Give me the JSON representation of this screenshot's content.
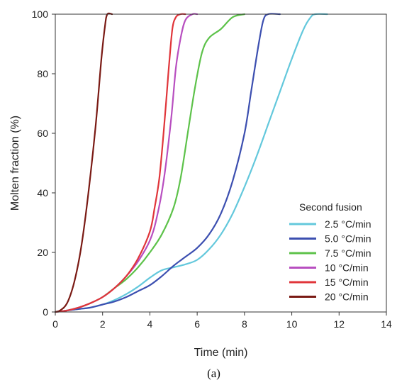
{
  "chart_data": {
    "type": "line",
    "xlabel": "Time (min)",
    "ylabel": "Molten fraction (%)",
    "xlim": [
      0,
      14
    ],
    "ylim": [
      0,
      100
    ],
    "x_ticks": [
      0,
      2,
      4,
      6,
      8,
      10,
      12,
      14
    ],
    "y_ticks": [
      0,
      20,
      40,
      60,
      80,
      100
    ],
    "grid": false,
    "legend_title": "Second fusion",
    "legend_position": "bottom-right",
    "caption": "(a)",
    "series": [
      {
        "name": "2.5 °C/min",
        "color": "#63c8dc",
        "points": [
          [
            0,
            0
          ],
          [
            0.5,
            0.5
          ],
          [
            1,
            1
          ],
          [
            1.5,
            1.5
          ],
          [
            2,
            2.5
          ],
          [
            2.5,
            4
          ],
          [
            3,
            6
          ],
          [
            3.5,
            8.5
          ],
          [
            4,
            11.5
          ],
          [
            4.5,
            14
          ],
          [
            5,
            15
          ],
          [
            5.5,
            16
          ],
          [
            6,
            17.5
          ],
          [
            6.5,
            21
          ],
          [
            7,
            26
          ],
          [
            7.5,
            33
          ],
          [
            8,
            42
          ],
          [
            8.5,
            52
          ],
          [
            9,
            63
          ],
          [
            9.5,
            74
          ],
          [
            10,
            85
          ],
          [
            10.5,
            95
          ],
          [
            10.8,
            99
          ],
          [
            11,
            100
          ],
          [
            11.5,
            100
          ]
        ]
      },
      {
        "name": "5.0 °C/min",
        "color": "#3c4fb0",
        "points": [
          [
            0,
            0
          ],
          [
            0.5,
            0.5
          ],
          [
            1,
            1
          ],
          [
            1.5,
            1.5
          ],
          [
            2,
            2.5
          ],
          [
            2.5,
            3.5
          ],
          [
            3,
            5
          ],
          [
            3.5,
            7
          ],
          [
            4,
            9
          ],
          [
            4.5,
            12
          ],
          [
            5,
            15.5
          ],
          [
            5.5,
            18.5
          ],
          [
            6,
            21.5
          ],
          [
            6.5,
            26
          ],
          [
            7,
            33
          ],
          [
            7.5,
            44
          ],
          [
            8,
            60
          ],
          [
            8.3,
            75
          ],
          [
            8.6,
            90
          ],
          [
            8.8,
            98
          ],
          [
            9,
            100
          ],
          [
            9.5,
            100
          ]
        ]
      },
      {
        "name": "7.5 °C/min",
        "color": "#5dc24a",
        "points": [
          [
            0,
            0
          ],
          [
            0.5,
            0.5
          ],
          [
            1,
            1.5
          ],
          [
            1.5,
            3
          ],
          [
            2,
            5
          ],
          [
            2.5,
            8
          ],
          [
            3,
            11
          ],
          [
            3.5,
            15
          ],
          [
            4,
            20
          ],
          [
            4.5,
            26
          ],
          [
            5,
            35
          ],
          [
            5.3,
            45
          ],
          [
            5.6,
            60
          ],
          [
            5.9,
            75
          ],
          [
            6.2,
            87
          ],
          [
            6.5,
            92
          ],
          [
            7,
            95
          ],
          [
            7.5,
            99
          ],
          [
            8,
            100
          ]
        ]
      },
      {
        "name": "10 °C/min",
        "color": "#b84fc0",
        "points": [
          [
            0,
            0
          ],
          [
            0.5,
            0.5
          ],
          [
            1,
            1.5
          ],
          [
            1.5,
            3
          ],
          [
            2,
            5
          ],
          [
            2.5,
            8
          ],
          [
            3,
            12
          ],
          [
            3.5,
            17
          ],
          [
            4,
            24
          ],
          [
            4.3,
            32
          ],
          [
            4.6,
            45
          ],
          [
            4.9,
            65
          ],
          [
            5.1,
            82
          ],
          [
            5.3,
            92
          ],
          [
            5.5,
            98
          ],
          [
            5.8,
            100
          ],
          [
            6,
            100
          ]
        ]
      },
      {
        "name": "15 °C/min",
        "color": "#e0353a",
        "points": [
          [
            0,
            0
          ],
          [
            0.5,
            0.5
          ],
          [
            1,
            1.5
          ],
          [
            1.5,
            3
          ],
          [
            2,
            5
          ],
          [
            2.5,
            8
          ],
          [
            3,
            12
          ],
          [
            3.5,
            18
          ],
          [
            4,
            27
          ],
          [
            4.2,
            35
          ],
          [
            4.4,
            45
          ],
          [
            4.6,
            62
          ],
          [
            4.8,
            82
          ],
          [
            4.95,
            95
          ],
          [
            5.1,
            99
          ],
          [
            5.3,
            100
          ],
          [
            5.5,
            100
          ]
        ]
      },
      {
        "name": "20 °C/min",
        "color": "#7a1a14",
        "points": [
          [
            0,
            0
          ],
          [
            0.2,
            0.5
          ],
          [
            0.5,
            3
          ],
          [
            0.8,
            10
          ],
          [
            1.1,
            22
          ],
          [
            1.4,
            40
          ],
          [
            1.7,
            62
          ],
          [
            1.95,
            85
          ],
          [
            2.1,
            96
          ],
          [
            2.2,
            100
          ],
          [
            2.4,
            100
          ]
        ]
      }
    ]
  }
}
